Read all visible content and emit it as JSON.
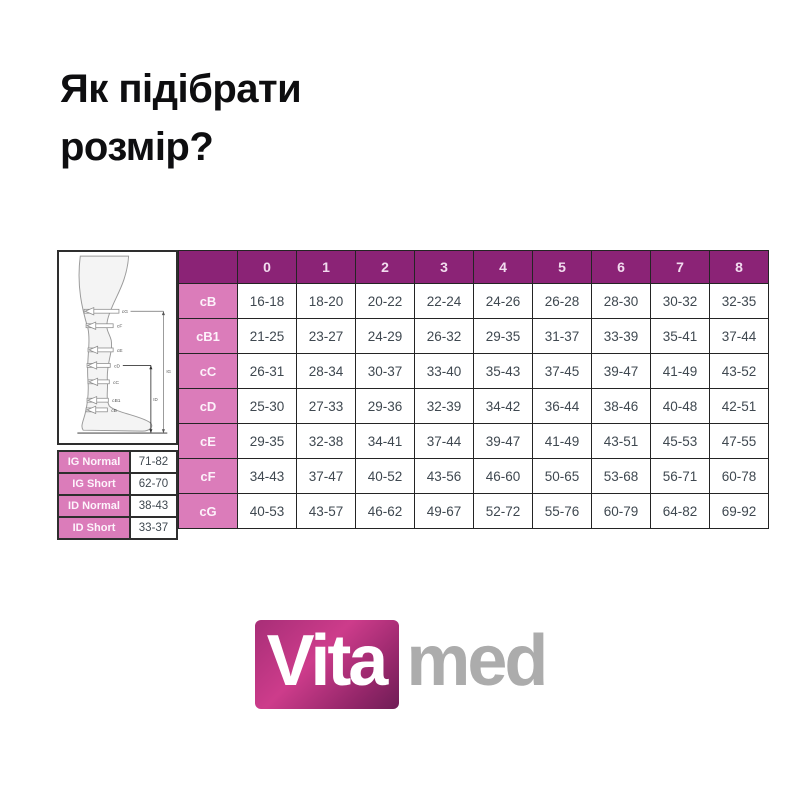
{
  "page": {
    "title_line1": "Як підібрати",
    "title_line2": "розмір?"
  },
  "size_chart": {
    "columns": [
      "0",
      "1",
      "2",
      "3",
      "4",
      "5",
      "6",
      "7",
      "8"
    ],
    "rows": [
      {
        "label": "cB",
        "values": [
          "16-18",
          "18-20",
          "20-22",
          "22-24",
          "24-26",
          "26-28",
          "28-30",
          "30-32",
          "32-35"
        ]
      },
      {
        "label": "cB1",
        "values": [
          "21-25",
          "23-27",
          "24-29",
          "26-32",
          "29-35",
          "31-37",
          "33-39",
          "35-41",
          "37-44"
        ]
      },
      {
        "label": "cC",
        "values": [
          "26-31",
          "28-34",
          "30-37",
          "33-40",
          "35-43",
          "37-45",
          "39-47",
          "41-49",
          "43-52"
        ]
      },
      {
        "label": "cD",
        "values": [
          "25-30",
          "27-33",
          "29-36",
          "32-39",
          "34-42",
          "36-44",
          "38-46",
          "40-48",
          "42-51"
        ]
      },
      {
        "label": "cE",
        "values": [
          "29-35",
          "32-38",
          "34-41",
          "37-44",
          "39-47",
          "41-49",
          "43-51",
          "45-53",
          "47-55"
        ]
      },
      {
        "label": "cF",
        "values": [
          "34-43",
          "37-47",
          "40-52",
          "43-56",
          "46-60",
          "50-65",
          "53-68",
          "56-71",
          "60-78"
        ]
      },
      {
        "label": "cG",
        "values": [
          "40-53",
          "43-57",
          "46-62",
          "49-67",
          "52-72",
          "55-76",
          "60-79",
          "64-82",
          "69-92"
        ]
      }
    ]
  },
  "length_table": {
    "rows": [
      {
        "label": "IG Normal",
        "value": "71-82"
      },
      {
        "label": "IG Short",
        "value": "62-70"
      },
      {
        "label": "ID Normal",
        "value": "38-43"
      },
      {
        "label": "ID Short",
        "value": "33-37"
      }
    ]
  },
  "leg_diagram": {
    "points": [
      "cG",
      "cF",
      "cE",
      "cD",
      "cC",
      "cB1",
      "cB"
    ],
    "dim_long": "IG",
    "dim_short": "ID"
  },
  "logo": {
    "primary": "Vita",
    "secondary": "med"
  },
  "colors": {
    "header_bg": "#8b2376",
    "label_bg": "#db7cba",
    "cell_text": "#3f4850",
    "logo_gradient_start": "#cd3c8b",
    "logo_gradient_end": "#6f1d56",
    "logo_med_gray": "#acacac"
  }
}
